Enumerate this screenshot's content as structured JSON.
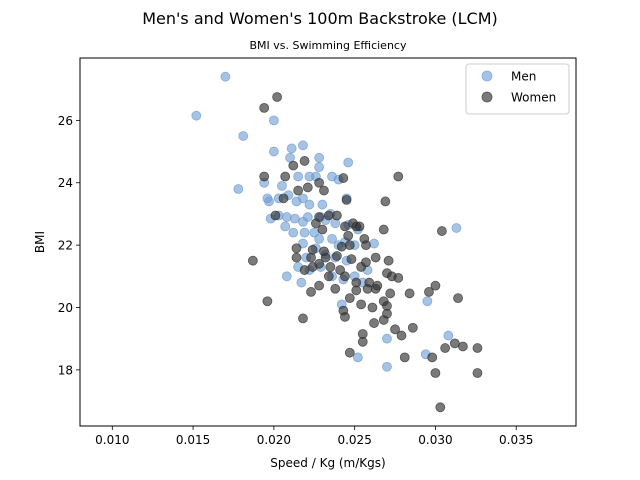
{
  "chart_data": {
    "type": "scatter",
    "title": "Men's and Women's 100m Backstroke (LCM)",
    "subtitle": "BMI vs. Swimming Efficiency",
    "xlabel": "Speed / Kg (m/Kgs)",
    "ylabel": "BMI",
    "xlim": [
      0.008,
      0.0387
    ],
    "ylim": [
      16.2,
      28.0
    ],
    "xticks": [
      0.01,
      0.015,
      0.02,
      0.025,
      0.03,
      0.035
    ],
    "xtick_labels": [
      "0.010",
      "0.015",
      "0.020",
      "0.025",
      "0.030",
      "0.035"
    ],
    "yticks": [
      18,
      20,
      22,
      24,
      26
    ],
    "ytick_labels": [
      "18",
      "20",
      "22",
      "24",
      "26"
    ],
    "grid": false,
    "legend_position": "top-right",
    "series": [
      {
        "name": "Men",
        "color": "#6c9bd2",
        "points": [
          [
            0.017,
            27.4
          ],
          [
            0.0152,
            26.15
          ],
          [
            0.0181,
            25.5
          ],
          [
            0.02,
            26.0
          ],
          [
            0.02,
            25.0
          ],
          [
            0.021,
            24.8
          ],
          [
            0.0211,
            25.1
          ],
          [
            0.0218,
            25.2
          ],
          [
            0.0228,
            24.8
          ],
          [
            0.0228,
            24.5
          ],
          [
            0.0246,
            24.65
          ],
          [
            0.0178,
            23.8
          ],
          [
            0.0194,
            24.0
          ],
          [
            0.0205,
            23.9
          ],
          [
            0.0215,
            24.2
          ],
          [
            0.0222,
            24.2
          ],
          [
            0.0226,
            24.2
          ],
          [
            0.0236,
            24.2
          ],
          [
            0.024,
            24.1
          ],
          [
            0.0196,
            23.5
          ],
          [
            0.0197,
            23.4
          ],
          [
            0.0203,
            23.5
          ],
          [
            0.0209,
            23.6
          ],
          [
            0.0214,
            23.4
          ],
          [
            0.0218,
            23.5
          ],
          [
            0.0222,
            23.3
          ],
          [
            0.023,
            23.3
          ],
          [
            0.0235,
            23.0
          ],
          [
            0.0245,
            23.5
          ],
          [
            0.0198,
            22.85
          ],
          [
            0.0203,
            22.95
          ],
          [
            0.0208,
            22.9
          ],
          [
            0.0213,
            22.85
          ],
          [
            0.0218,
            22.75
          ],
          [
            0.0221,
            22.9
          ],
          [
            0.0229,
            22.9
          ],
          [
            0.0232,
            22.8
          ],
          [
            0.0238,
            22.7
          ],
          [
            0.0246,
            22.65
          ],
          [
            0.0252,
            22.5
          ],
          [
            0.0207,
            22.6
          ],
          [
            0.0212,
            22.4
          ],
          [
            0.0219,
            22.4
          ],
          [
            0.0225,
            22.4
          ],
          [
            0.0228,
            22.2
          ],
          [
            0.0236,
            22.2
          ],
          [
            0.024,
            22.0
          ],
          [
            0.0244,
            22.1
          ],
          [
            0.025,
            22.0
          ],
          [
            0.0262,
            22.05
          ],
          [
            0.0218,
            22.05
          ],
          [
            0.022,
            21.6
          ],
          [
            0.0226,
            21.9
          ],
          [
            0.0232,
            21.7
          ],
          [
            0.0238,
            21.6
          ],
          [
            0.0245,
            21.5
          ],
          [
            0.0215,
            21.3
          ],
          [
            0.0222,
            21.2
          ],
          [
            0.0229,
            21.3
          ],
          [
            0.0236,
            21.0
          ],
          [
            0.0243,
            20.9
          ],
          [
            0.025,
            21.0
          ],
          [
            0.0255,
            20.8
          ],
          [
            0.0258,
            21.2
          ],
          [
            0.0208,
            21.0
          ],
          [
            0.0217,
            20.8
          ],
          [
            0.0242,
            20.1
          ],
          [
            0.0252,
            18.4
          ],
          [
            0.027,
            18.1
          ],
          [
            0.027,
            19.0
          ],
          [
            0.0295,
            20.2
          ],
          [
            0.0294,
            18.5
          ],
          [
            0.0308,
            19.1
          ],
          [
            0.0313,
            22.55
          ]
        ]
      },
      {
        "name": "Women",
        "color": "#333333",
        "points": [
          [
            0.0194,
            26.4
          ],
          [
            0.0202,
            26.75
          ],
          [
            0.0194,
            24.2
          ],
          [
            0.0207,
            24.2
          ],
          [
            0.0212,
            24.55
          ],
          [
            0.0219,
            24.7
          ],
          [
            0.0228,
            24.0
          ],
          [
            0.0243,
            24.15
          ],
          [
            0.0277,
            24.2
          ],
          [
            0.0215,
            23.75
          ],
          [
            0.0221,
            23.85
          ],
          [
            0.0231,
            23.75
          ],
          [
            0.0245,
            23.45
          ],
          [
            0.0269,
            23.4
          ],
          [
            0.0206,
            23.5
          ],
          [
            0.0201,
            22.95
          ],
          [
            0.0228,
            22.9
          ],
          [
            0.0234,
            22.95
          ],
          [
            0.0239,
            22.95
          ],
          [
            0.0226,
            22.7
          ],
          [
            0.0244,
            22.6
          ],
          [
            0.0249,
            22.7
          ],
          [
            0.0251,
            22.6
          ],
          [
            0.0253,
            22.6
          ],
          [
            0.0268,
            22.5
          ],
          [
            0.0304,
            22.45
          ],
          [
            0.023,
            22.5
          ],
          [
            0.0246,
            22.3
          ],
          [
            0.0256,
            22.2
          ],
          [
            0.0214,
            21.9
          ],
          [
            0.0224,
            21.85
          ],
          [
            0.0231,
            21.8
          ],
          [
            0.0242,
            21.95
          ],
          [
            0.0247,
            22.0
          ],
          [
            0.0257,
            22.0
          ],
          [
            0.0187,
            21.5
          ],
          [
            0.0214,
            21.6
          ],
          [
            0.0223,
            21.6
          ],
          [
            0.0232,
            21.6
          ],
          [
            0.0239,
            21.65
          ],
          [
            0.0248,
            21.55
          ],
          [
            0.0263,
            21.6
          ],
          [
            0.0271,
            21.5
          ],
          [
            0.0224,
            21.3
          ],
          [
            0.0228,
            21.4
          ],
          [
            0.0235,
            21.3
          ],
          [
            0.0241,
            21.2
          ],
          [
            0.0254,
            21.3
          ],
          [
            0.0257,
            21.45
          ],
          [
            0.0219,
            21.2
          ],
          [
            0.0234,
            21.0
          ],
          [
            0.0244,
            21.0
          ],
          [
            0.0251,
            20.8
          ],
          [
            0.0259,
            20.8
          ],
          [
            0.0264,
            20.7
          ],
          [
            0.027,
            21.1
          ],
          [
            0.0273,
            21.0
          ],
          [
            0.0277,
            20.95
          ],
          [
            0.0228,
            20.7
          ],
          [
            0.0238,
            20.6
          ],
          [
            0.0251,
            20.55
          ],
          [
            0.0258,
            20.6
          ],
          [
            0.0263,
            20.6
          ],
          [
            0.0272,
            20.45
          ],
          [
            0.0296,
            20.5
          ],
          [
            0.03,
            20.7
          ],
          [
            0.0284,
            20.45
          ],
          [
            0.0314,
            20.3
          ],
          [
            0.0196,
            20.2
          ],
          [
            0.0223,
            20.5
          ],
          [
            0.0247,
            20.3
          ],
          [
            0.0254,
            20.1
          ],
          [
            0.0261,
            20.0
          ],
          [
            0.0268,
            20.2
          ],
          [
            0.027,
            20.05
          ],
          [
            0.0243,
            19.9
          ],
          [
            0.0244,
            19.7
          ],
          [
            0.0218,
            19.65
          ],
          [
            0.0262,
            19.5
          ],
          [
            0.0268,
            19.6
          ],
          [
            0.0275,
            19.3
          ],
          [
            0.0255,
            19.15
          ],
          [
            0.027,
            19.8
          ],
          [
            0.0279,
            19.1
          ],
          [
            0.0286,
            19.35
          ],
          [
            0.0247,
            18.55
          ],
          [
            0.0255,
            18.9
          ],
          [
            0.0281,
            18.4
          ],
          [
            0.0298,
            18.4
          ],
          [
            0.0306,
            18.7
          ],
          [
            0.0312,
            18.85
          ],
          [
            0.0317,
            18.75
          ],
          [
            0.0326,
            18.7
          ],
          [
            0.03,
            17.9
          ],
          [
            0.0326,
            17.9
          ],
          [
            0.0303,
            16.8
          ]
        ]
      }
    ]
  }
}
